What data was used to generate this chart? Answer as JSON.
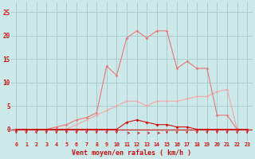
{
  "xlabel": "Vent moyen/en rafales ( km/h )",
  "hours": [
    0,
    1,
    2,
    3,
    4,
    5,
    6,
    7,
    8,
    9,
    10,
    11,
    12,
    13,
    14,
    15,
    16,
    17,
    18,
    19,
    20,
    21,
    22,
    23
  ],
  "vent_moyen": [
    0,
    0,
    0,
    0,
    0,
    0,
    1,
    2,
    3,
    4,
    5,
    6,
    6,
    5,
    6,
    6,
    6,
    6.5,
    7,
    7,
    8,
    8.5,
    0,
    0
  ],
  "rafales": [
    0,
    0,
    0,
    0,
    0.5,
    1,
    2,
    2.5,
    3.5,
    13.5,
    11.5,
    19.5,
    21,
    19.5,
    21,
    21,
    13,
    14.5,
    13,
    13,
    3,
    3,
    0,
    0
  ],
  "vent_inst": [
    0,
    0,
    0,
    0,
    0,
    0,
    0,
    0,
    0,
    0,
    0,
    1.5,
    2,
    1.5,
    1,
    1,
    0.5,
    0.5,
    0,
    0,
    0,
    0,
    0,
    0
  ],
  "bg_color": "#cce8e8",
  "grid_color": "#aacccc",
  "line_color_rafales": "#e87878",
  "line_color_moyen": "#f0a8a8",
  "line_color_inst": "#cc1111",
  "arrow_color": "#cc2222",
  "yticks": [
    0,
    5,
    10,
    15,
    20,
    25
  ],
  "ylim": [
    -2.5,
    27
  ],
  "xlim": [
    -0.5,
    23.5
  ]
}
